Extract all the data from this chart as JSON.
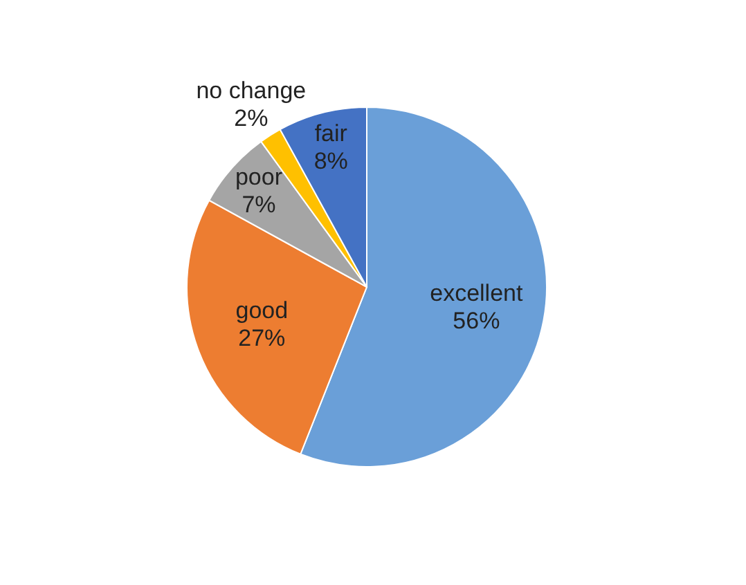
{
  "chart_data": {
    "type": "pie",
    "categories": [
      "excellent",
      "good",
      "poor",
      "no change",
      "fair"
    ],
    "values": [
      56,
      27,
      7,
      2,
      8
    ],
    "value_labels": [
      "56%",
      "27%",
      "7%",
      "2%",
      "8%"
    ],
    "colors": [
      "#6a9fd8",
      "#ed7d31",
      "#a5a5a5",
      "#ffc000",
      "#4472c4"
    ],
    "legend": false
  }
}
